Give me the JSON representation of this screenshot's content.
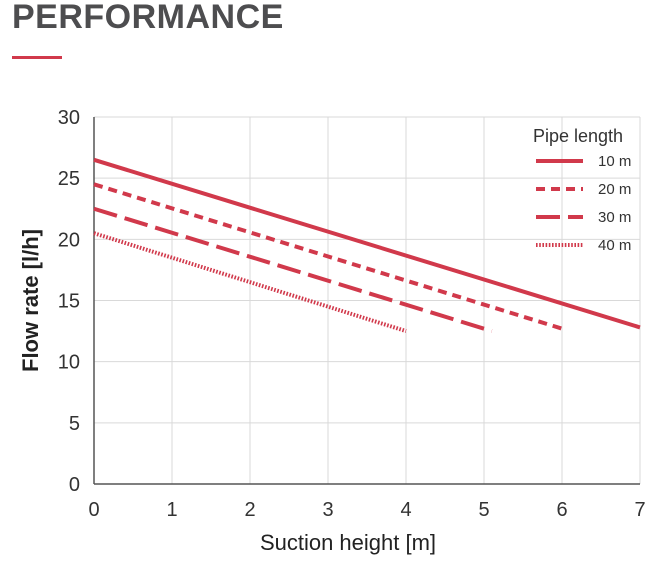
{
  "page": {
    "title": "PERFORMANCE"
  },
  "colors": {
    "accent": "#d1394b",
    "series": "#d1394b",
    "text": "#333333",
    "grid": "#d9d9d9"
  },
  "chart_data": {
    "type": "line",
    "title": "",
    "xlabel": "Suction height [m]",
    "ylabel": "Flow rate [l/h]",
    "xlim": [
      0,
      7
    ],
    "ylim": [
      0,
      30
    ],
    "xticks": [
      0,
      1,
      2,
      3,
      4,
      5,
      6,
      7
    ],
    "yticks": [
      0,
      5,
      10,
      15,
      20,
      25,
      30
    ],
    "grid": true,
    "legend": {
      "title": "Pipe length",
      "position": "top-right"
    },
    "series": [
      {
        "name": "10 m",
        "style": "solid",
        "x": [
          0,
          7
        ],
        "y": [
          26.5,
          12.8
        ]
      },
      {
        "name": "20 m",
        "style": "dotted",
        "x": [
          0,
          6
        ],
        "y": [
          24.5,
          12.7
        ]
      },
      {
        "name": "30 m",
        "style": "dashed",
        "x": [
          0,
          5.1
        ],
        "y": [
          22.5,
          12.5
        ]
      },
      {
        "name": "40 m",
        "style": "hatched",
        "x": [
          0,
          4
        ],
        "y": [
          20.5,
          12.5
        ]
      }
    ]
  }
}
